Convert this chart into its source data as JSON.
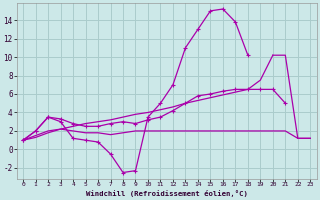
{
  "background_color": "#cce8e8",
  "grid_color": "#aacccc",
  "line_color": "#aa00aa",
  "xlabel": "Windchill (Refroidissement éolien,°C)",
  "xlim": [
    -0.5,
    23.5
  ],
  "ylim": [
    -3.2,
    15.8
  ],
  "yticks": [
    -2,
    0,
    2,
    4,
    6,
    8,
    10,
    12,
    14
  ],
  "xticks": [
    0,
    1,
    2,
    3,
    4,
    5,
    6,
    7,
    8,
    9,
    10,
    11,
    12,
    13,
    14,
    15,
    16,
    17,
    18,
    19,
    20,
    21,
    22,
    23
  ],
  "series1_x": [
    0,
    1,
    2,
    3,
    4,
    5,
    6,
    7,
    8,
    9,
    10,
    11,
    12,
    13,
    14,
    15,
    16,
    17,
    18
  ],
  "series1_y": [
    1.0,
    2.0,
    3.5,
    3.0,
    1.2,
    1.0,
    0.8,
    -0.5,
    -2.5,
    -2.3,
    3.5,
    5.0,
    7.0,
    11.0,
    13.0,
    15.0,
    15.2,
    13.8,
    10.2
  ],
  "series2_x": [
    0,
    1,
    2,
    3,
    4,
    5,
    6,
    7,
    8,
    9,
    10,
    11,
    12,
    13,
    14,
    15,
    16,
    17,
    18,
    19,
    20,
    21
  ],
  "series2_y": [
    1.0,
    2.0,
    3.5,
    3.3,
    2.8,
    2.5,
    2.5,
    2.8,
    3.0,
    2.8,
    3.2,
    3.5,
    4.2,
    5.0,
    5.8,
    6.0,
    6.3,
    6.5,
    6.5,
    6.5,
    6.5,
    5.0
  ],
  "series3_x": [
    0,
    1,
    2,
    3,
    4,
    5,
    6,
    7,
    8,
    9,
    10,
    11,
    12,
    13,
    14,
    15,
    16,
    17,
    18,
    19,
    20,
    21,
    22,
    23
  ],
  "series3_y": [
    1.0,
    1.3,
    1.8,
    2.2,
    2.5,
    2.8,
    3.0,
    3.2,
    3.5,
    3.8,
    4.0,
    4.3,
    4.6,
    5.0,
    5.3,
    5.6,
    5.9,
    6.2,
    6.5,
    7.5,
    10.2,
    10.2,
    1.2,
    1.2
  ],
  "series4_x": [
    0,
    1,
    2,
    3,
    4,
    5,
    6,
    7,
    8,
    9,
    10,
    11,
    12,
    13,
    14,
    15,
    16,
    17,
    18,
    19,
    20,
    21,
    22,
    23
  ],
  "series4_y": [
    1.0,
    1.5,
    2.0,
    2.2,
    2.0,
    1.8,
    1.8,
    1.6,
    1.8,
    2.0,
    2.0,
    2.0,
    2.0,
    2.0,
    2.0,
    2.0,
    2.0,
    2.0,
    2.0,
    2.0,
    2.0,
    2.0,
    1.2,
    1.2
  ]
}
